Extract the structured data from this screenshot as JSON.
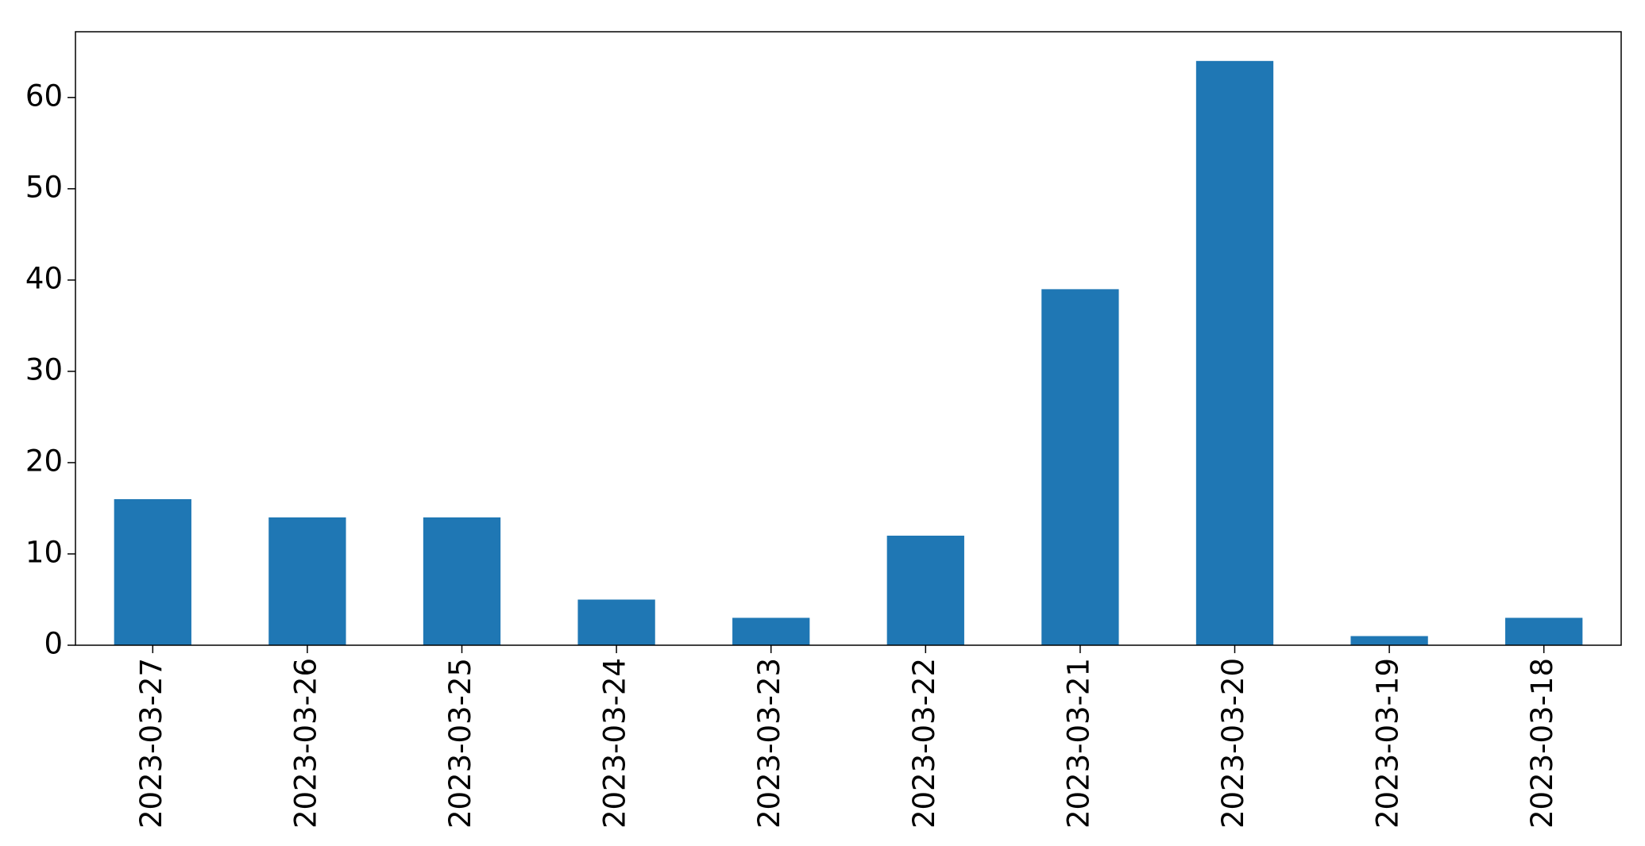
{
  "chart_data": {
    "type": "bar",
    "title": "",
    "xlabel": "",
    "ylabel": "",
    "categories": [
      "2023-03-27",
      "2023-03-26",
      "2023-03-25",
      "2023-03-24",
      "2023-03-23",
      "2023-03-22",
      "2023-03-21",
      "2023-03-20",
      "2023-03-19",
      "2023-03-18"
    ],
    "values": [
      16,
      14,
      14,
      5,
      3,
      12,
      39,
      64,
      1,
      3
    ],
    "ylim": [
      0,
      67.2
    ],
    "yticks": [
      0,
      10,
      20,
      30,
      40,
      50,
      60
    ],
    "grid": false,
    "legend": false,
    "bar_color": "#1f77b4",
    "x_tick_rotation": "vertical"
  }
}
